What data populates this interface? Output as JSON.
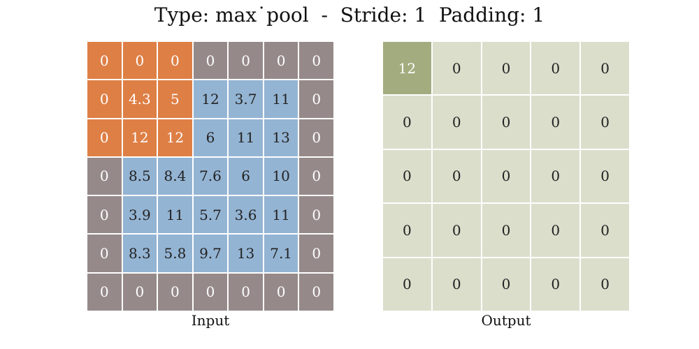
{
  "title": "Type: max˙pool  -  Stride: 1  Padding: 1",
  "input": {
    "label": "Input",
    "rows": [
      [
        "0",
        "0",
        "0",
        "0",
        "0",
        "0",
        "0"
      ],
      [
        "0",
        "4.3",
        "5",
        "12",
        "3.7",
        "11",
        "0"
      ],
      [
        "0",
        "12",
        "12",
        "6",
        "11",
        "13",
        "0"
      ],
      [
        "0",
        "8.5",
        "8.4",
        "7.6",
        "6",
        "10",
        "0"
      ],
      [
        "0",
        "3.9",
        "11",
        "5.7",
        "3.6",
        "11",
        "0"
      ],
      [
        "0",
        "8.3",
        "5.8",
        "9.7",
        "13",
        "7.1",
        "0"
      ],
      [
        "0",
        "0",
        "0",
        "0",
        "0",
        "0",
        "0"
      ]
    ],
    "kinds": [
      [
        "win",
        "win",
        "win",
        "pad",
        "pad",
        "pad",
        "pad"
      ],
      [
        "win",
        "win",
        "win",
        "val",
        "val",
        "val",
        "pad"
      ],
      [
        "win",
        "win",
        "win",
        "val",
        "val",
        "val",
        "pad"
      ],
      [
        "pad",
        "val",
        "val",
        "val",
        "val",
        "val",
        "pad"
      ],
      [
        "pad",
        "val",
        "val",
        "val",
        "val",
        "val",
        "pad"
      ],
      [
        "pad",
        "val",
        "val",
        "val",
        "val",
        "val",
        "pad"
      ],
      [
        "pad",
        "pad",
        "pad",
        "pad",
        "pad",
        "pad",
        "pad"
      ]
    ]
  },
  "output": {
    "label": "Output",
    "rows": [
      [
        "12",
        "0",
        "0",
        "0",
        "0"
      ],
      [
        "0",
        "0",
        "0",
        "0",
        "0"
      ],
      [
        "0",
        "0",
        "0",
        "0",
        "0"
      ],
      [
        "0",
        "0",
        "0",
        "0",
        "0"
      ],
      [
        "0",
        "0",
        "0",
        "0",
        "0"
      ]
    ],
    "kinds": [
      [
        "cur",
        "out",
        "out",
        "out",
        "out"
      ],
      [
        "out",
        "out",
        "out",
        "out",
        "out"
      ],
      [
        "out",
        "out",
        "out",
        "out",
        "out"
      ],
      [
        "out",
        "out",
        "out",
        "out",
        "out"
      ],
      [
        "out",
        "out",
        "out",
        "out",
        "out"
      ]
    ]
  },
  "colors": {
    "padding_cell": "#958a89",
    "input_cell": "#94b4d3",
    "pooling_window": "#de7f45",
    "output_cell": "#dbdecb",
    "current_output_cell": "#a3ac7f"
  }
}
